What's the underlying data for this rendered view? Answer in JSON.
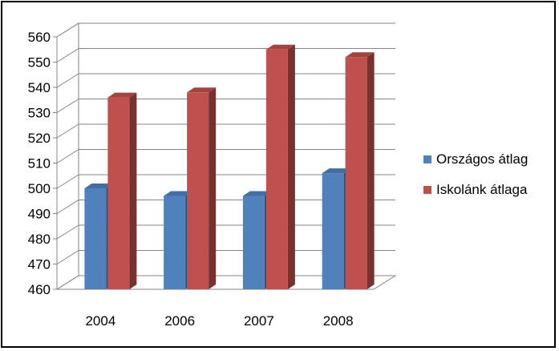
{
  "chart_data": {
    "type": "bar",
    "categories": [
      "2004",
      "2006",
      "2007",
      "2008"
    ],
    "series": [
      {
        "name": "Országos átlag",
        "values": [
          500,
          497,
          497,
          506
        ],
        "color": "#4f81bd"
      },
      {
        "name": "Iskolánk átlaga",
        "values": [
          536,
          538,
          555,
          552
        ],
        "color": "#c0504d"
      }
    ],
    "ylim": [
      460,
      560
    ],
    "yticks": [
      "460",
      "470",
      "480",
      "490",
      "500",
      "510",
      "520",
      "530",
      "540",
      "550",
      "560"
    ],
    "grid": true,
    "legend_position": "right",
    "title": "",
    "xlabel": "",
    "ylabel": ""
  }
}
